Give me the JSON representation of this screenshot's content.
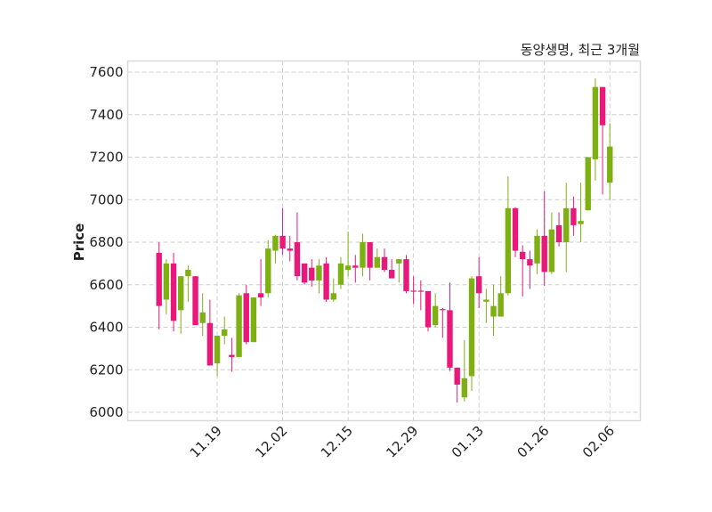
{
  "chart_data": {
    "type": "candlestick",
    "title": "동양생명, 최근 3개월",
    "xlabel": "",
    "ylabel": "Price",
    "ylim": [
      5960,
      7650
    ],
    "yticks": [
      6000,
      6200,
      6400,
      6600,
      6800,
      7000,
      7200,
      7400,
      7600
    ],
    "xticks": [
      {
        "index": 8,
        "label": "11.19"
      },
      {
        "index": 17,
        "label": "12.02"
      },
      {
        "index": 26,
        "label": "12.15"
      },
      {
        "index": 35,
        "label": "12.29"
      },
      {
        "index": 44,
        "label": "01.13"
      },
      {
        "index": 53,
        "label": "01.26"
      },
      {
        "index": 62,
        "label": "02.06"
      }
    ],
    "grid": true,
    "colors": {
      "up": "#7fb013",
      "down": "#e8197a"
    },
    "ohlc_fields": [
      "open",
      "high",
      "low",
      "close"
    ],
    "ohlc": [
      [
        6750,
        6800,
        6390,
        6500
      ],
      [
        6530,
        6720,
        6460,
        6700
      ],
      [
        6700,
        6750,
        6380,
        6430
      ],
      [
        6480,
        6640,
        6370,
        6640
      ],
      [
        6640,
        6690,
        6520,
        6670
      ],
      [
        6640,
        6640,
        6410,
        6410
      ],
      [
        6420,
        6560,
        6360,
        6470
      ],
      [
        6420,
        6530,
        6220,
        6220
      ],
      [
        6230,
        6360,
        6170,
        6360
      ],
      [
        6360,
        6450,
        6320,
        6390
      ],
      [
        6270,
        6350,
        6190,
        6260
      ],
      [
        6260,
        6560,
        6260,
        6550
      ],
      [
        6560,
        6600,
        6320,
        6330
      ],
      [
        6330,
        6540,
        6330,
        6540
      ],
      [
        6560,
        6720,
        6500,
        6540
      ],
      [
        6560,
        6810,
        6540,
        6770
      ],
      [
        6760,
        6835,
        6700,
        6830
      ],
      [
        6830,
        6960,
        6740,
        6770
      ],
      [
        6770,
        6830,
        6710,
        6760
      ],
      [
        6800,
        6940,
        6620,
        6640
      ],
      [
        6700,
        6700,
        6600,
        6610
      ],
      [
        6680,
        6720,
        6590,
        6620
      ],
      [
        6620,
        6720,
        6560,
        6690
      ],
      [
        6700,
        6730,
        6520,
        6530
      ],
      [
        6530,
        6630,
        6520,
        6560
      ],
      [
        6600,
        6730,
        6580,
        6700
      ],
      [
        6670,
        6850,
        6640,
        6690
      ],
      [
        6690,
        6740,
        6610,
        6680
      ],
      [
        6680,
        6840,
        6640,
        6800
      ],
      [
        6800,
        6800,
        6620,
        6680
      ],
      [
        6680,
        6770,
        6680,
        6730
      ],
      [
        6730,
        6770,
        6660,
        6670
      ],
      [
        6670,
        6720,
        6630,
        6630
      ],
      [
        6700,
        6720,
        6610,
        6720
      ],
      [
        6720,
        6740,
        6560,
        6570
      ],
      [
        6572,
        6640,
        6510,
        6570
      ],
      [
        6572,
        6620,
        6480,
        6570
      ],
      [
        6570,
        6570,
        6380,
        6400
      ],
      [
        6410,
        6560,
        6400,
        6500
      ],
      [
        6485,
        6490,
        6350,
        6480
      ],
      [
        6480,
        6610,
        6195,
        6210
      ],
      [
        6210,
        6210,
        6045,
        6130
      ],
      [
        6070,
        6340,
        6050,
        6160
      ],
      [
        6170,
        6640,
        6100,
        6630
      ],
      [
        6640,
        6730,
        6490,
        6560
      ],
      [
        6520,
        6580,
        6420,
        6530
      ],
      [
        6450,
        6600,
        6360,
        6500
      ],
      [
        6450,
        6640,
        6450,
        6560
      ],
      [
        6560,
        7110,
        6550,
        6960
      ],
      [
        6960,
        6965,
        6730,
        6760
      ],
      [
        6755,
        6785,
        6545,
        6720
      ],
      [
        6720,
        6760,
        6580,
        6690
      ],
      [
        6700,
        6860,
        6650,
        6830
      ],
      [
        6830,
        7040,
        6595,
        6660
      ],
      [
        6660,
        6940,
        6650,
        6860
      ],
      [
        6880,
        6940,
        6780,
        6800
      ],
      [
        6800,
        7080,
        6660,
        6960
      ],
      [
        6960,
        7015,
        6830,
        6880
      ],
      [
        6885,
        7080,
        6800,
        6900
      ],
      [
        6950,
        7200,
        6950,
        7200
      ],
      [
        7190,
        7570,
        7090,
        7530
      ],
      [
        7530,
        7530,
        7025,
        7350
      ],
      [
        7080,
        7360,
        7000,
        7250
      ]
    ]
  }
}
